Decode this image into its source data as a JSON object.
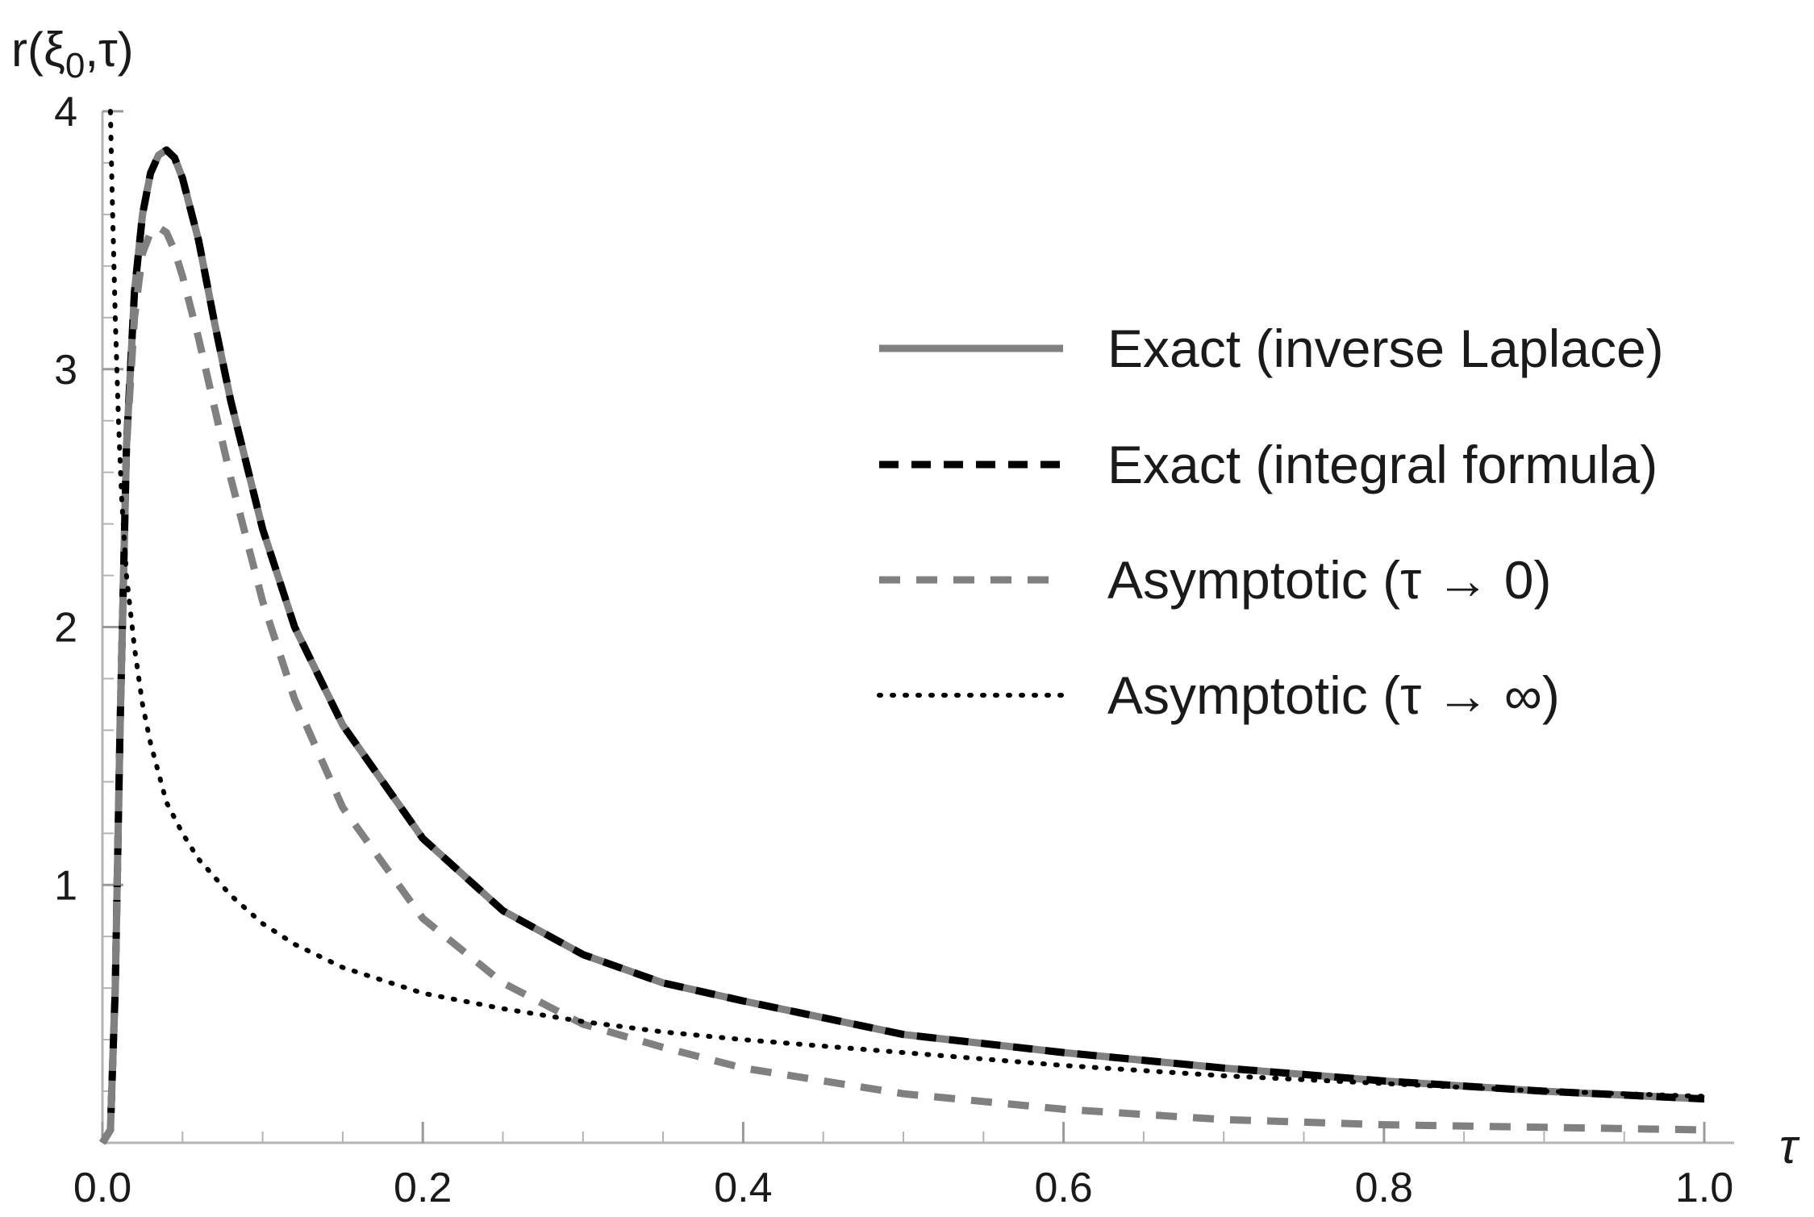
{
  "chart_data": {
    "type": "line",
    "title": "",
    "xlabel": "τ",
    "ylabel": "r(ξ0,τ)",
    "ylabel_parts": {
      "prefix": "r(ξ",
      "sub": "0",
      "suffix": ",τ)"
    },
    "xlim": [
      0,
      1.0
    ],
    "ylim": [
      0,
      4
    ],
    "x_ticks": [
      0.0,
      0.2,
      0.4,
      0.6,
      0.8,
      1.0
    ],
    "x_tick_labels": [
      "0.0",
      "0.2",
      "0.4",
      "0.6",
      "0.8",
      "1.0"
    ],
    "y_ticks": [
      1,
      2,
      3,
      4
    ],
    "y_tick_labels": [
      "1",
      "2",
      "3",
      "4"
    ],
    "grid": false,
    "legend_position": "upper-right",
    "series": [
      {
        "name": "Exact (inverse Laplace)",
        "style": "solid",
        "color": "#808080",
        "x": [
          0.0,
          0.005,
          0.008,
          0.011,
          0.015,
          0.02,
          0.025,
          0.03,
          0.035,
          0.04,
          0.045,
          0.05,
          0.055,
          0.06,
          0.07,
          0.08,
          0.1,
          0.12,
          0.15,
          0.2,
          0.25,
          0.3,
          0.35,
          0.4,
          0.5,
          0.6,
          0.7,
          0.8,
          0.9,
          1.0
        ],
        "y": [
          0.0,
          0.05,
          0.6,
          1.6,
          2.7,
          3.3,
          3.6,
          3.76,
          3.83,
          3.85,
          3.82,
          3.74,
          3.62,
          3.5,
          3.18,
          2.88,
          2.38,
          2.0,
          1.62,
          1.18,
          0.9,
          0.73,
          0.62,
          0.55,
          0.42,
          0.35,
          0.29,
          0.24,
          0.2,
          0.17
        ]
      },
      {
        "name": "Exact (integral formula)",
        "style": "dashed",
        "color": "#000000",
        "x": [
          0.0,
          0.005,
          0.008,
          0.011,
          0.015,
          0.02,
          0.025,
          0.03,
          0.035,
          0.04,
          0.045,
          0.05,
          0.055,
          0.06,
          0.07,
          0.08,
          0.1,
          0.12,
          0.15,
          0.2,
          0.25,
          0.3,
          0.35,
          0.4,
          0.5,
          0.6,
          0.7,
          0.8,
          0.9,
          1.0
        ],
        "y": [
          0.0,
          0.05,
          0.6,
          1.6,
          2.7,
          3.3,
          3.6,
          3.76,
          3.83,
          3.85,
          3.82,
          3.74,
          3.62,
          3.5,
          3.18,
          2.88,
          2.38,
          2.0,
          1.62,
          1.18,
          0.9,
          0.73,
          0.62,
          0.55,
          0.42,
          0.35,
          0.29,
          0.24,
          0.2,
          0.17
        ]
      },
      {
        "name": "Asymptotic (τ → 0)",
        "style": "dashed",
        "color": "#808080",
        "x": [
          0.0,
          0.005,
          0.008,
          0.011,
          0.015,
          0.02,
          0.025,
          0.03,
          0.035,
          0.04,
          0.045,
          0.05,
          0.06,
          0.07,
          0.08,
          0.1,
          0.12,
          0.15,
          0.2,
          0.25,
          0.3,
          0.35,
          0.4,
          0.5,
          0.6,
          0.7,
          0.8,
          0.9,
          1.0
        ],
        "y": [
          0.0,
          0.05,
          0.6,
          1.6,
          2.7,
          3.2,
          3.45,
          3.53,
          3.55,
          3.53,
          3.46,
          3.36,
          3.12,
          2.85,
          2.58,
          2.1,
          1.72,
          1.3,
          0.87,
          0.62,
          0.46,
          0.37,
          0.29,
          0.19,
          0.13,
          0.09,
          0.07,
          0.06,
          0.05
        ]
      },
      {
        "name": "Asymptotic (τ → ∞)",
        "style": "dotted",
        "color": "#000000",
        "x": [
          0.005,
          0.006,
          0.008,
          0.01,
          0.012,
          0.015,
          0.02,
          0.025,
          0.03,
          0.04,
          0.05,
          0.06,
          0.08,
          0.1,
          0.12,
          0.15,
          0.2,
          0.25,
          0.3,
          0.35,
          0.4,
          0.5,
          0.6,
          0.7,
          0.8,
          0.9,
          1.0
        ],
        "y": [
          4.0,
          3.7,
          3.2,
          2.8,
          2.5,
          2.2,
          1.92,
          1.7,
          1.55,
          1.32,
          1.2,
          1.1,
          0.96,
          0.85,
          0.77,
          0.68,
          0.58,
          0.52,
          0.47,
          0.43,
          0.4,
          0.35,
          0.3,
          0.26,
          0.23,
          0.2,
          0.18
        ]
      }
    ]
  }
}
